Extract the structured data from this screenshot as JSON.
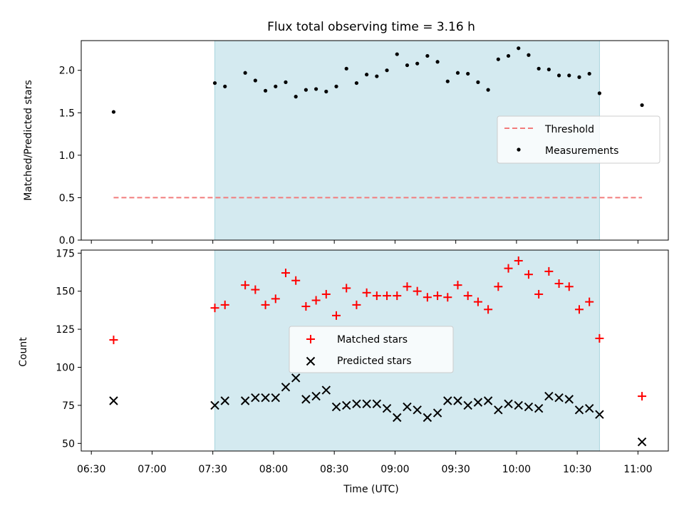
{
  "chart_data": {
    "title": "Flux total observing time = 3.16 h",
    "xlabel": "Time (UTC)",
    "x_ticks": [
      "06:30",
      "07:00",
      "07:30",
      "08:00",
      "08:30",
      "09:00",
      "09:30",
      "10:00",
      "10:30",
      "11:00"
    ],
    "x_range": [
      "06:25",
      "11:15"
    ],
    "observing_window": [
      "07:31",
      "10:41"
    ],
    "colors": {
      "window": "#d4eaf0",
      "window_edge": "#a8d4dd",
      "threshold": "#f27c7c",
      "matched": "#ff0000",
      "predicted": "#000000",
      "measure": "#000000"
    },
    "top": {
      "type": "scatter",
      "ylabel": "Matched/Predicted stars",
      "ylim": [
        0,
        2.35
      ],
      "y_ticks": [
        "0.0",
        "0.5",
        "1.0",
        "1.5",
        "2.0"
      ],
      "threshold": {
        "name": "Threshold",
        "value": 0.5,
        "x_from": "06:41",
        "x_to": "11:02"
      },
      "series": [
        {
          "name": "Measurements",
          "marker": "dot",
          "x": [
            "06:41",
            "07:31",
            "07:36",
            "07:46",
            "07:51",
            "07:56",
            "08:01",
            "08:06",
            "08:11",
            "08:16",
            "08:21",
            "08:26",
            "08:31",
            "08:36",
            "08:41",
            "08:46",
            "08:51",
            "08:56",
            "09:01",
            "09:06",
            "09:11",
            "09:16",
            "09:21",
            "09:26",
            "09:31",
            "09:36",
            "09:41",
            "09:46",
            "09:51",
            "09:56",
            "10:01",
            "10:06",
            "10:11",
            "10:16",
            "10:21",
            "10:26",
            "10:31",
            "10:36",
            "10:41",
            "11:02"
          ],
          "y": [
            1.51,
            1.85,
            1.81,
            1.97,
            1.88,
            1.76,
            1.81,
            1.86,
            1.69,
            1.77,
            1.78,
            1.75,
            1.81,
            2.02,
            1.85,
            1.95,
            1.93,
            2.0,
            2.19,
            2.06,
            2.08,
            2.17,
            2.1,
            1.87,
            1.97,
            1.96,
            1.86,
            1.77,
            2.13,
            2.17,
            2.26,
            2.18,
            2.02,
            2.01,
            1.94,
            1.94,
            1.92,
            1.96,
            1.73,
            1.59
          ]
        }
      ],
      "legend": [
        "Threshold",
        "Measurements"
      ],
      "legend_loc": "center-right"
    },
    "bottom": {
      "type": "scatter",
      "ylabel": "Count",
      "ylim": [
        45,
        177
      ],
      "y_ticks": [
        "50",
        "75",
        "100",
        "125",
        "150",
        "175"
      ],
      "series": [
        {
          "name": "Matched stars",
          "marker": "plus",
          "x": [
            "06:41",
            "07:31",
            "07:36",
            "07:46",
            "07:51",
            "07:56",
            "08:01",
            "08:06",
            "08:11",
            "08:16",
            "08:21",
            "08:26",
            "08:31",
            "08:36",
            "08:41",
            "08:46",
            "08:51",
            "08:56",
            "09:01",
            "09:06",
            "09:11",
            "09:16",
            "09:21",
            "09:26",
            "09:31",
            "09:36",
            "09:41",
            "09:46",
            "09:51",
            "09:56",
            "10:01",
            "10:06",
            "10:11",
            "10:16",
            "10:21",
            "10:26",
            "10:31",
            "10:36",
            "10:41",
            "11:02"
          ],
          "y": [
            118,
            139,
            141,
            154,
            151,
            141,
            145,
            162,
            157,
            140,
            144,
            148,
            134,
            152,
            141,
            149,
            147,
            147,
            147,
            153,
            150,
            146,
            147,
            146,
            154,
            147,
            143,
            138,
            153,
            165,
            170,
            161,
            148,
            163,
            155,
            153,
            138,
            143,
            119,
            81
          ]
        },
        {
          "name": "Predicted stars",
          "marker": "x",
          "x": [
            "06:41",
            "07:31",
            "07:36",
            "07:46",
            "07:51",
            "07:56",
            "08:01",
            "08:06",
            "08:11",
            "08:16",
            "08:21",
            "08:26",
            "08:31",
            "08:36",
            "08:41",
            "08:46",
            "08:51",
            "08:56",
            "09:01",
            "09:06",
            "09:11",
            "09:16",
            "09:21",
            "09:26",
            "09:31",
            "09:36",
            "09:41",
            "09:46",
            "09:51",
            "09:56",
            "10:01",
            "10:06",
            "10:11",
            "10:16",
            "10:21",
            "10:26",
            "10:31",
            "10:36",
            "10:41",
            "11:02"
          ],
          "y": [
            78,
            75,
            78,
            78,
            80,
            80,
            80,
            87,
            93,
            79,
            81,
            85,
            74,
            75,
            76,
            76,
            76,
            73,
            67,
            74,
            72,
            67,
            70,
            78,
            78,
            75,
            77,
            78,
            72,
            76,
            75,
            74,
            73,
            81,
            80,
            79,
            72,
            73,
            69,
            51
          ]
        }
      ],
      "legend": [
        "Matched stars",
        "Predicted stars"
      ],
      "legend_loc": "center"
    }
  }
}
